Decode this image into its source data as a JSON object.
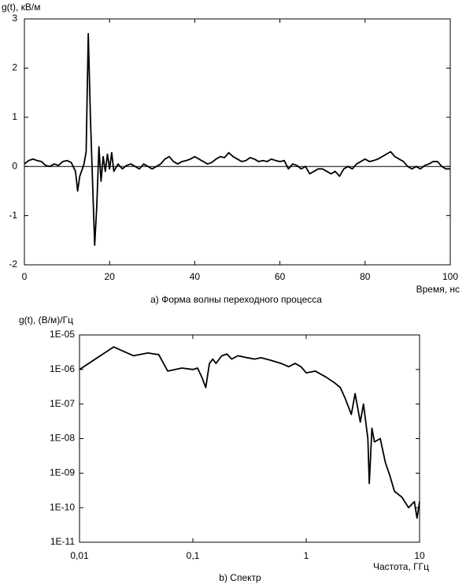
{
  "chart_data": [
    {
      "type": "line",
      "title": "а) Форма волны переходного процесса",
      "y_label": "g(t), кВ/м",
      "x_label": "Время, нс",
      "xlim": [
        0,
        100
      ],
      "ylim": [
        -2,
        3
      ],
      "xticks": [
        0,
        20,
        40,
        60,
        80,
        100
      ],
      "yticks": [
        -2,
        -1,
        0,
        1,
        2,
        3
      ],
      "xlog": false,
      "ylog": false,
      "color": "#000000",
      "zero_line": true,
      "x": [
        0,
        1,
        2,
        3,
        4,
        5,
        6,
        7,
        8,
        9,
        10,
        11,
        12,
        12.5,
        13,
        14,
        14.5,
        15,
        15.5,
        16,
        16.5,
        17,
        17.5,
        18,
        18.5,
        19,
        19.5,
        20,
        20.5,
        21,
        22,
        23,
        24,
        25,
        26,
        27,
        28,
        29,
        30,
        31,
        32,
        33,
        34,
        35,
        36,
        37,
        38,
        39,
        40,
        41,
        42,
        43,
        44,
        45,
        46,
        47,
        48,
        49,
        50,
        51,
        52,
        53,
        54,
        55,
        56,
        57,
        58,
        59,
        60,
        61,
        62,
        63,
        64,
        65,
        66,
        67,
        68,
        69,
        70,
        71,
        72,
        73,
        74,
        75,
        76,
        77,
        78,
        79,
        80,
        81,
        82,
        83,
        84,
        85,
        86,
        87,
        88,
        89,
        90,
        91,
        92,
        93,
        94,
        95,
        96,
        97,
        98,
        99,
        100
      ],
      "values": [
        0.05,
        0.12,
        0.15,
        0.12,
        0.1,
        0.02,
        0.0,
        0.05,
        0.02,
        0.1,
        0.12,
        0.08,
        -0.1,
        -0.5,
        -0.2,
        0.05,
        0.3,
        2.7,
        1.0,
        -0.3,
        -1.6,
        -0.8,
        0.4,
        -0.3,
        0.2,
        -0.1,
        0.25,
        -0.05,
        0.28,
        -0.1,
        0.05,
        -0.05,
        0.02,
        0.05,
        0.0,
        -0.05,
        0.05,
        0.0,
        -0.05,
        0.0,
        0.05,
        0.15,
        0.2,
        0.1,
        0.05,
        0.1,
        0.12,
        0.15,
        0.2,
        0.15,
        0.1,
        0.05,
        0.08,
        0.15,
        0.2,
        0.18,
        0.28,
        0.2,
        0.15,
        0.1,
        0.12,
        0.18,
        0.15,
        0.1,
        0.12,
        0.1,
        0.15,
        0.12,
        0.1,
        0.12,
        -0.05,
        0.05,
        0.02,
        -0.05,
        0.0,
        -0.15,
        -0.1,
        -0.05,
        -0.05,
        -0.1,
        -0.15,
        -0.1,
        -0.2,
        -0.05,
        0.0,
        -0.05,
        0.05,
        0.1,
        0.15,
        0.1,
        0.12,
        0.15,
        0.2,
        0.25,
        0.3,
        0.2,
        0.15,
        0.1,
        0.0,
        -0.05,
        0.0,
        -0.05,
        0.02,
        0.05,
        0.1,
        0.1,
        0.0,
        -0.05,
        -0.05
      ]
    },
    {
      "type": "line",
      "title": "b) Спектр",
      "y_label": "g(t), (В/м)/Гц",
      "x_label": "Частота, ГГц",
      "xlim": [
        0.01,
        10
      ],
      "ylim": [
        1e-11,
        1e-05
      ],
      "xticks": [
        {
          "value": 0.01,
          "label": "0,01"
        },
        {
          "value": 0.1,
          "label": "0,1"
        },
        1,
        10
      ],
      "yticks": [
        {
          "value": 1e-11,
          "label": "1E-11"
        },
        {
          "value": 1e-10,
          "label": "1E-10"
        },
        {
          "value": 1e-09,
          "label": "1E-09"
        },
        {
          "value": 1e-08,
          "label": "1E-08"
        },
        {
          "value": 1e-07,
          "label": "1E-07"
        },
        {
          "value": 1e-06,
          "label": "1E-06"
        },
        {
          "value": 1e-05,
          "label": "1E-05"
        }
      ],
      "xlog": true,
      "ylog": true,
      "color": "#000000",
      "zero_line": false,
      "x": [
        0.01,
        0.02,
        0.03,
        0.04,
        0.05,
        0.06,
        0.08,
        0.1,
        0.11,
        0.12,
        0.13,
        0.14,
        0.15,
        0.16,
        0.18,
        0.2,
        0.22,
        0.25,
        0.3,
        0.35,
        0.4,
        0.5,
        0.6,
        0.7,
        0.8,
        0.9,
        1,
        1.2,
        1.5,
        1.8,
        2,
        2.2,
        2.5,
        2.7,
        3,
        3.2,
        3.5,
        3.6,
        3.8,
        4,
        4.5,
        5,
        5.5,
        6,
        7,
        8,
        9,
        9.5,
        10
      ],
      "values": [
        1e-06,
        4.5e-06,
        2.5e-06,
        3e-06,
        2.7e-06,
        9e-07,
        1.1e-06,
        1e-06,
        1.1e-06,
        6e-07,
        3e-07,
        1.5e-06,
        2e-06,
        1.5e-06,
        2.5e-06,
        2.8e-06,
        2e-06,
        2.5e-06,
        2.2e-06,
        2e-06,
        2.2e-06,
        1.8e-06,
        1.5e-06,
        1.2e-06,
        1.5e-06,
        1.2e-06,
        8e-07,
        9e-07,
        6e-07,
        4e-07,
        3e-07,
        1.5e-07,
        5e-08,
        2e-07,
        3e-08,
        1e-07,
        1e-08,
        5e-10,
        2e-08,
        8e-09,
        1e-08,
        2e-09,
        8e-10,
        3e-10,
        2e-10,
        1e-10,
        1.5e-10,
        5e-11,
        1.5e-10
      ]
    }
  ]
}
